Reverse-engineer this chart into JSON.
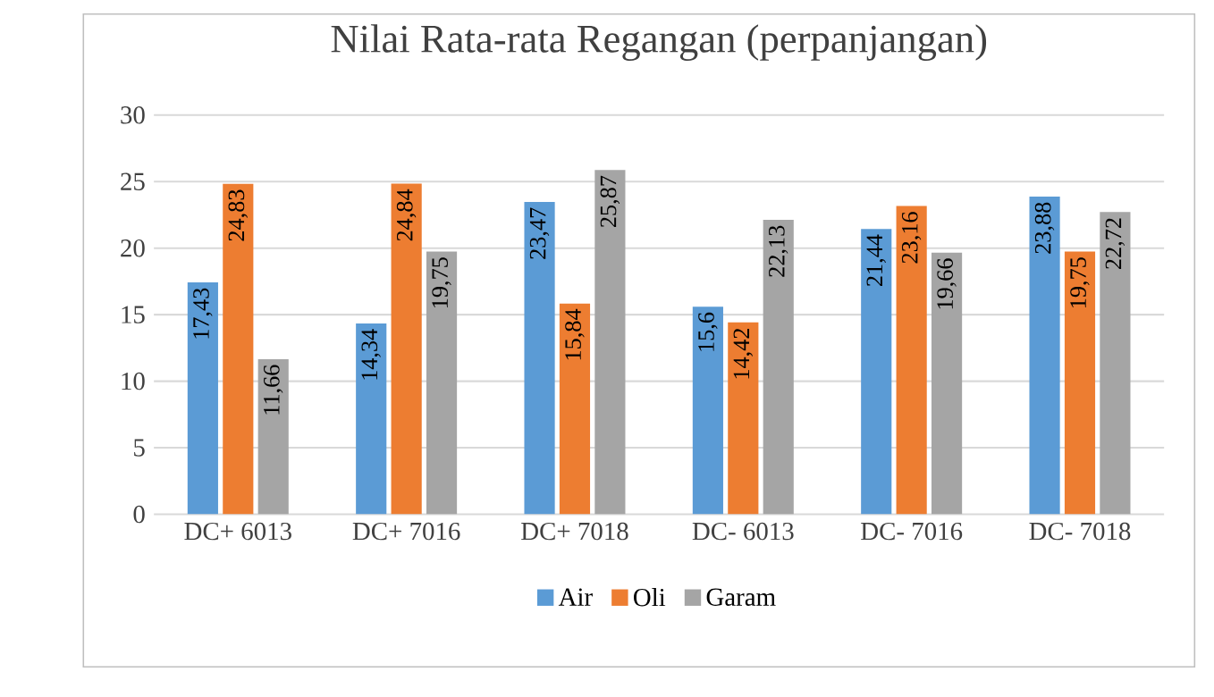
{
  "chart_data": {
    "type": "bar",
    "title": "Nilai Rata-rata Regangan (perpanjangan)",
    "categories": [
      "DC+ 6013",
      "DC+ 7016",
      "DC+ 7018",
      "DC- 6013",
      "DC- 7016",
      "DC- 7018"
    ],
    "series": [
      {
        "name": "Air",
        "color": "#5b9bd5",
        "values": [
          17.43,
          14.34,
          23.47,
          15.6,
          21.44,
          23.88
        ],
        "value_labels": [
          "17,43",
          "14,34",
          "23,47",
          "15,6",
          "21,44",
          "23,88"
        ]
      },
      {
        "name": "Oli",
        "color": "#ed7d31",
        "values": [
          24.83,
          24.84,
          15.84,
          14.42,
          23.16,
          19.75
        ],
        "value_labels": [
          "24,83",
          "24,84",
          "15,84",
          "14,42",
          "23,16",
          "19,75"
        ]
      },
      {
        "name": "Garam",
        "color": "#a5a5a5",
        "values": [
          11.66,
          19.75,
          25.87,
          22.13,
          19.66,
          22.72
        ],
        "value_labels": [
          "11,66",
          "19,75",
          "25,87",
          "22,13",
          "19,66",
          "22,72"
        ]
      }
    ],
    "ylim": [
      0,
      30
    ],
    "yticks": [
      0,
      5,
      10,
      15,
      20,
      25,
      30
    ],
    "grid": "y",
    "legend": "bottom"
  }
}
